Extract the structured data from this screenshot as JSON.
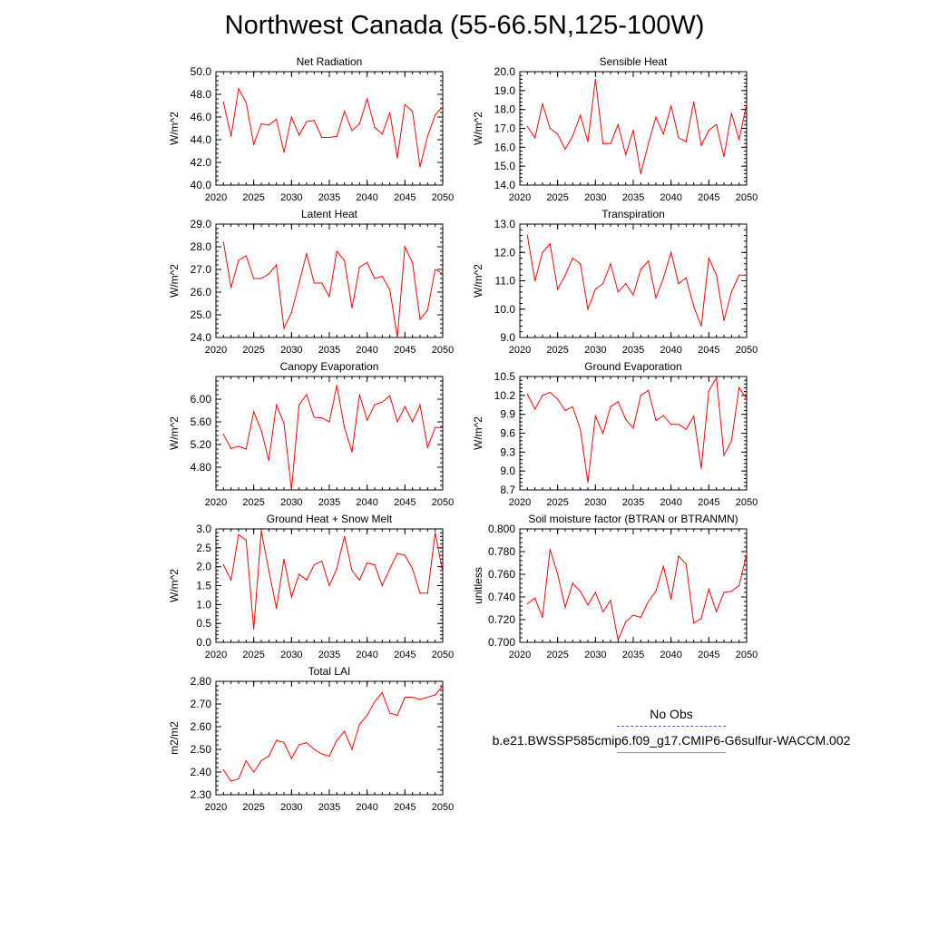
{
  "title": "Northwest Canada (55-66.5N,125-100W)",
  "line_color": "#ff0000",
  "legend": {
    "entries": [
      {
        "label": "No Obs",
        "style": "dashed",
        "color": "#5555aa"
      },
      {
        "label": "b.e21.BWSSP585cmip6.f09_g17.CMIP6-G6sulfur-WACCM.002",
        "style": "solid",
        "color": "#e07070"
      }
    ]
  },
  "chart_data": [
    {
      "type": "line",
      "title": "Net Radiation",
      "ylabel": "W/m^2",
      "xlim": [
        2020,
        2050
      ],
      "ylim": [
        40,
        50
      ],
      "xticks": [
        "2020",
        "2025",
        "2030",
        "2035",
        "2040",
        "2045",
        "2050"
      ],
      "yticks": [
        "40.0",
        "42.0",
        "44.0",
        "46.0",
        "48.0",
        "50.0"
      ],
      "x": [
        2021,
        2022,
        2023,
        2024,
        2025,
        2026,
        2027,
        2028,
        2029,
        2030,
        2031,
        2032,
        2033,
        2034,
        2035,
        2036,
        2037,
        2038,
        2039,
        2040,
        2041,
        2042,
        2043,
        2044,
        2045,
        2046,
        2047,
        2048,
        2049,
        2050
      ],
      "values": [
        47.3,
        44.3,
        48.5,
        47.3,
        43.6,
        45.4,
        45.3,
        45.8,
        42.9,
        46.0,
        44.4,
        45.6,
        45.7,
        44.2,
        44.2,
        44.3,
        46.5,
        44.8,
        45.4,
        47.6,
        45.1,
        44.5,
        46.4,
        42.4,
        47.1,
        46.5,
        41.6,
        44.3,
        46.2,
        46.9
      ]
    },
    {
      "type": "line",
      "title": "Sensible Heat",
      "ylabel": "W/m^2",
      "xlim": [
        2020,
        2050
      ],
      "ylim": [
        14,
        20
      ],
      "xticks": [
        "2020",
        "2025",
        "2030",
        "2035",
        "2040",
        "2045",
        "2050"
      ],
      "yticks": [
        "14.0",
        "15.0",
        "16.0",
        "17.0",
        "18.0",
        "19.0",
        "20.0"
      ],
      "x": [
        2021,
        2022,
        2023,
        2024,
        2025,
        2026,
        2027,
        2028,
        2029,
        2030,
        2031,
        2032,
        2033,
        2034,
        2035,
        2036,
        2037,
        2038,
        2039,
        2040,
        2041,
        2042,
        2043,
        2044,
        2045,
        2046,
        2047,
        2048,
        2049,
        2050
      ],
      "values": [
        17.1,
        16.5,
        18.3,
        17.0,
        16.7,
        15.9,
        16.6,
        17.7,
        16.3,
        19.6,
        16.2,
        16.2,
        17.2,
        15.6,
        16.9,
        14.6,
        16.2,
        17.6,
        16.7,
        18.2,
        16.5,
        16.3,
        18.4,
        16.1,
        16.9,
        17.2,
        15.5,
        17.8,
        16.4,
        18.3
      ]
    },
    {
      "type": "line",
      "title": "Latent Heat",
      "ylabel": "W/m^2",
      "xlim": [
        2020,
        2050
      ],
      "ylim": [
        24,
        29
      ],
      "xticks": [
        "2020",
        "2025",
        "2030",
        "2035",
        "2040",
        "2045",
        "2050"
      ],
      "yticks": [
        "24.0",
        "25.0",
        "26.0",
        "27.0",
        "28.0",
        "29.0"
      ],
      "x": [
        2021,
        2022,
        2023,
        2024,
        2025,
        2026,
        2027,
        2028,
        2029,
        2030,
        2031,
        2032,
        2033,
        2034,
        2035,
        2036,
        2037,
        2038,
        2039,
        2040,
        2041,
        2042,
        2043,
        2044,
        2045,
        2046,
        2047,
        2048,
        2049,
        2050
      ],
      "values": [
        28.2,
        26.2,
        27.4,
        27.6,
        26.6,
        26.6,
        26.8,
        27.2,
        24.4,
        25.1,
        26.4,
        27.7,
        26.4,
        26.4,
        25.8,
        27.8,
        27.4,
        25.3,
        27.1,
        27.3,
        26.6,
        26.7,
        26.1,
        24.0,
        28.0,
        27.3,
        24.8,
        25.2,
        27.0,
        26.8
      ]
    },
    {
      "type": "line",
      "title": "Transpiration",
      "ylabel": "W/m^2",
      "xlim": [
        2020,
        2050
      ],
      "ylim": [
        9,
        13
      ],
      "xticks": [
        "2020",
        "2025",
        "2030",
        "2035",
        "2040",
        "2045",
        "2050"
      ],
      "yticks": [
        "9.0",
        "10.0",
        "11.0",
        "12.0",
        "13.0"
      ],
      "x": [
        2021,
        2022,
        2023,
        2024,
        2025,
        2026,
        2027,
        2028,
        2029,
        2030,
        2031,
        2032,
        2033,
        2034,
        2035,
        2036,
        2037,
        2038,
        2039,
        2040,
        2041,
        2042,
        2043,
        2044,
        2045,
        2046,
        2047,
        2048,
        2049,
        2050
      ],
      "values": [
        12.6,
        11.0,
        12.0,
        12.3,
        10.7,
        11.2,
        11.8,
        11.6,
        10.0,
        10.7,
        10.9,
        11.6,
        10.6,
        10.9,
        10.5,
        11.4,
        11.7,
        10.4,
        11.1,
        12.0,
        10.9,
        11.1,
        10.1,
        9.4,
        11.8,
        11.2,
        9.6,
        10.6,
        11.2,
        11.2
      ]
    },
    {
      "type": "line",
      "title": "Canopy Evaporation",
      "ylabel": "W/m^2",
      "xlim": [
        2020,
        2050
      ],
      "ylim": [
        4.4,
        6.4
      ],
      "xticks": [
        "2020",
        "2025",
        "2030",
        "2035",
        "2040",
        "2045",
        "2050"
      ],
      "yticks": [
        "4.80",
        "5.20",
        "5.60",
        "6.00"
      ],
      "x": [
        2021,
        2022,
        2023,
        2024,
        2025,
        2026,
        2027,
        2028,
        2029,
        2030,
        2031,
        2032,
        2033,
        2034,
        2035,
        2036,
        2037,
        2038,
        2039,
        2040,
        2041,
        2042,
        2043,
        2044,
        2045,
        2046,
        2047,
        2048,
        2049,
        2050
      ],
      "values": [
        5.38,
        5.13,
        5.17,
        5.12,
        5.78,
        5.45,
        4.92,
        5.9,
        5.58,
        4.4,
        5.9,
        6.08,
        5.68,
        5.67,
        5.6,
        6.24,
        5.5,
        5.07,
        6.08,
        5.63,
        5.9,
        5.95,
        6.06,
        5.6,
        5.87,
        5.6,
        5.9,
        5.15,
        5.5,
        5.5
      ]
    },
    {
      "type": "line",
      "title": "Ground Evaporation",
      "ylabel": "W/m^2",
      "xlim": [
        2020,
        2050
      ],
      "ylim": [
        8.7,
        10.5
      ],
      "xticks": [
        "2020",
        "2025",
        "2030",
        "2035",
        "2040",
        "2045",
        "2050"
      ],
      "yticks": [
        "8.7",
        "9.0",
        "9.3",
        "9.6",
        "9.9",
        "10.2",
        "10.5"
      ],
      "x": [
        2021,
        2022,
        2023,
        2024,
        2025,
        2026,
        2027,
        2028,
        2029,
        2030,
        2031,
        2032,
        2033,
        2034,
        2035,
        2036,
        2037,
        2038,
        2039,
        2040,
        2041,
        2042,
        2043,
        2044,
        2045,
        2046,
        2047,
        2048,
        2049,
        2050
      ],
      "values": [
        10.22,
        9.98,
        10.2,
        10.25,
        10.14,
        9.96,
        10.02,
        9.66,
        8.82,
        9.87,
        9.6,
        10.02,
        10.1,
        9.82,
        9.68,
        10.2,
        10.28,
        9.8,
        9.88,
        9.74,
        9.74,
        9.66,
        9.87,
        9.04,
        10.27,
        10.48,
        9.25,
        9.48,
        10.32,
        10.15
      ]
    },
    {
      "type": "line",
      "title": "Ground Heat + Snow Melt",
      "ylabel": "W/m^2",
      "xlim": [
        2020,
        2050
      ],
      "ylim": [
        0,
        3
      ],
      "xticks": [
        "2020",
        "2025",
        "2030",
        "2035",
        "2040",
        "2045",
        "2050"
      ],
      "yticks": [
        "0.0",
        "0.5",
        "1.0",
        "1.5",
        "2.0",
        "2.5",
        "3.0"
      ],
      "x": [
        2021,
        2022,
        2023,
        2024,
        2025,
        2026,
        2027,
        2028,
        2029,
        2030,
        2031,
        2032,
        2033,
        2034,
        2035,
        2036,
        2037,
        2038,
        2039,
        2040,
        2041,
        2042,
        2043,
        2044,
        2045,
        2046,
        2047,
        2048,
        2049,
        2050
      ],
      "values": [
        2.05,
        1.65,
        2.85,
        2.7,
        0.35,
        2.95,
        1.9,
        0.9,
        2.2,
        1.2,
        1.8,
        1.65,
        2.05,
        2.15,
        1.5,
        1.95,
        2.8,
        1.9,
        1.65,
        2.1,
        2.05,
        1.5,
        1.95,
        2.35,
        2.3,
        1.95,
        1.3,
        1.3,
        2.9,
        1.85
      ]
    },
    {
      "type": "line",
      "title": "Soil moisture factor (BTRAN or BTRANMN)",
      "ylabel": "unitless",
      "xlim": [
        2020,
        2050
      ],
      "ylim": [
        0.7,
        0.8
      ],
      "xticks": [
        "2020",
        "2025",
        "2030",
        "2035",
        "2040",
        "2045",
        "2050"
      ],
      "yticks": [
        "0.700",
        "0.720",
        "0.740",
        "0.760",
        "0.780",
        "0.800"
      ],
      "x": [
        2021,
        2022,
        2023,
        2024,
        2025,
        2026,
        2027,
        2028,
        2029,
        2030,
        2031,
        2032,
        2033,
        2034,
        2035,
        2036,
        2037,
        2038,
        2039,
        2040,
        2041,
        2042,
        2043,
        2044,
        2045,
        2046,
        2047,
        2048,
        2049,
        2050
      ],
      "values": [
        0.734,
        0.739,
        0.722,
        0.782,
        0.76,
        0.731,
        0.752,
        0.745,
        0.733,
        0.744,
        0.727,
        0.737,
        0.702,
        0.718,
        0.724,
        0.722,
        0.736,
        0.745,
        0.767,
        0.738,
        0.776,
        0.769,
        0.717,
        0.721,
        0.747,
        0.727,
        0.744,
        0.745,
        0.75,
        0.778
      ]
    },
    {
      "type": "line",
      "title": "Total LAI",
      "ylabel": "m2/m2",
      "xlim": [
        2020,
        2050
      ],
      "ylim": [
        2.3,
        2.8
      ],
      "xticks": [
        "2020",
        "2025",
        "2030",
        "2035",
        "2040",
        "2045",
        "2050"
      ],
      "yticks": [
        "2.30",
        "2.40",
        "2.50",
        "2.60",
        "2.70",
        "2.80"
      ],
      "x": [
        2021,
        2022,
        2023,
        2024,
        2025,
        2026,
        2027,
        2028,
        2029,
        2030,
        2031,
        2032,
        2033,
        2034,
        2035,
        2036,
        2037,
        2038,
        2039,
        2040,
        2041,
        2042,
        2043,
        2044,
        2045,
        2046,
        2047,
        2048,
        2049,
        2050
      ],
      "values": [
        2.41,
        2.36,
        2.37,
        2.45,
        2.4,
        2.45,
        2.47,
        2.54,
        2.53,
        2.46,
        2.52,
        2.53,
        2.5,
        2.48,
        2.47,
        2.54,
        2.58,
        2.5,
        2.61,
        2.65,
        2.71,
        2.75,
        2.66,
        2.65,
        2.73,
        2.73,
        2.72,
        2.73,
        2.74,
        2.78
      ]
    }
  ]
}
